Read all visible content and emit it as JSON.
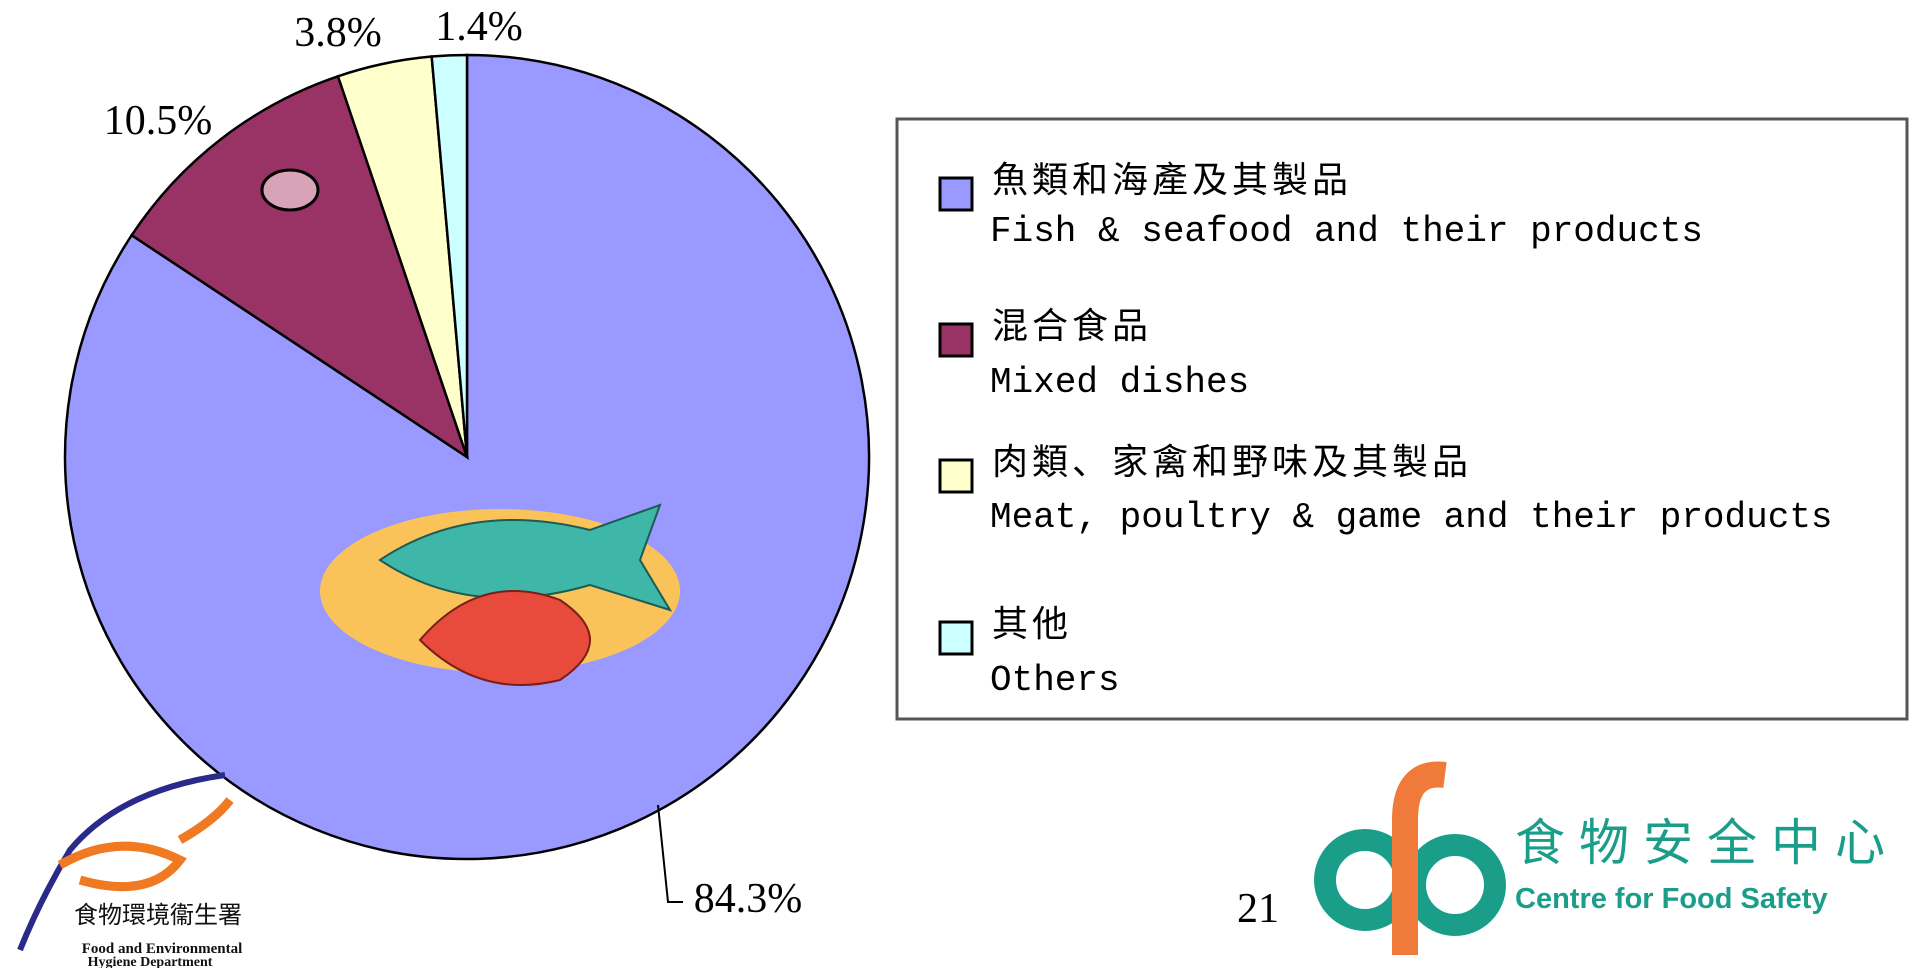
{
  "chart_data": {
    "type": "pie",
    "categories": [
      "Fish & seafood and their products",
      "Mixed dishes",
      "Meat, poultry & game and their products",
      "Others"
    ],
    "categories_zh": [
      "魚類和海產及其製品",
      "混合食品",
      "肉類、家禽和野味及其製品",
      "其他"
    ],
    "values": [
      84.3,
      10.5,
      3.8,
      1.4
    ],
    "value_labels": [
      "84.3%",
      "10.5%",
      "3.8%",
      "1.4%"
    ],
    "colors": [
      "#9999ff",
      "#993366",
      "#ffffcc",
      "#ccffff"
    ],
    "legend": "right"
  },
  "page_number": "21",
  "footer": {
    "fehd_zh": "食物環境衞生署",
    "fehd_en_1": "Food and Environmental",
    "fehd_en_2": "Hygiene Department",
    "cfs_zh": "食物安全中心",
    "cfs_en": "Centre for Food Safety"
  }
}
